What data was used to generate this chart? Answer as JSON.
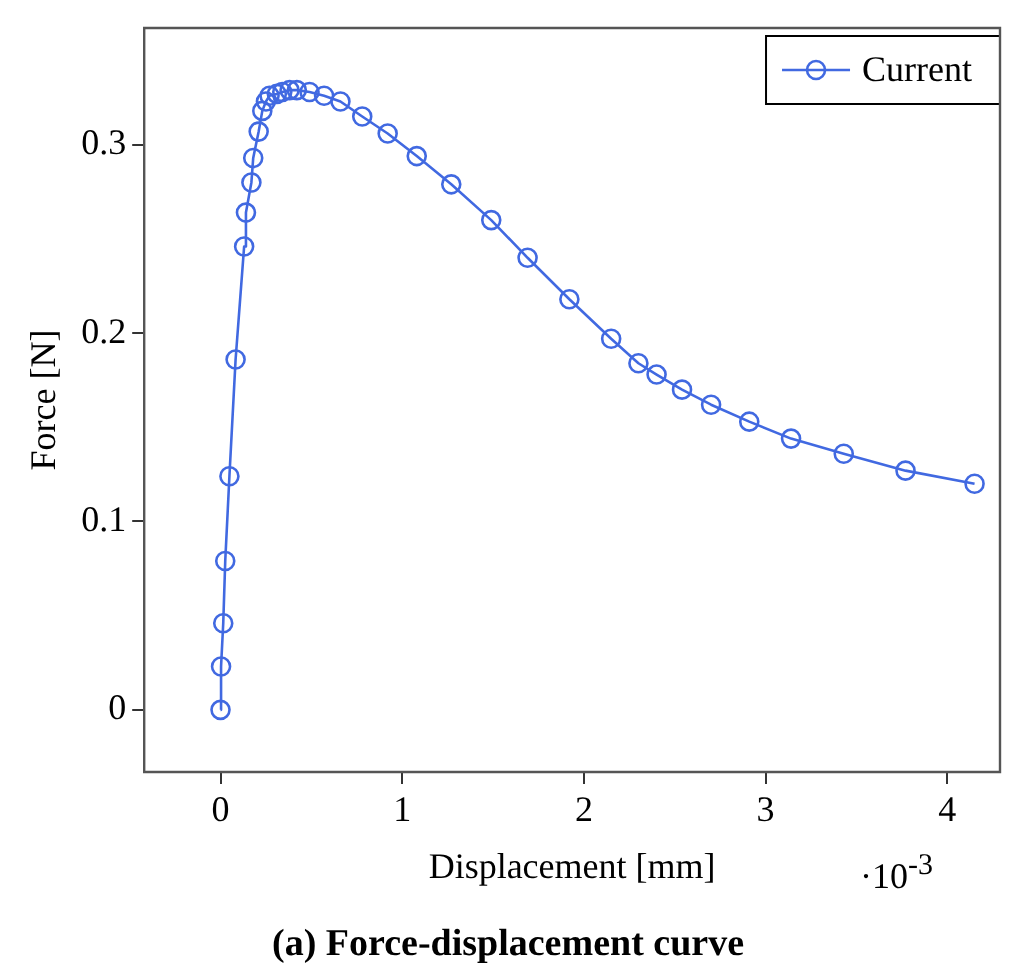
{
  "chart_data": {
    "type": "line",
    "title": "(a) Force-displacement curve",
    "xlabel": "Displacement [mm]",
    "ylabel": "Force [N]",
    "annotations": [
      "·10$^{-3}$"
    ],
    "x": [
      0,
      0.003,
      0.015,
      0.026,
      0.049,
      0.083,
      0.13,
      0.14,
      0.17,
      0.18,
      0.21,
      0.23,
      0.25,
      0.27,
      0.31,
      0.34,
      0.38,
      0.42,
      0.49,
      0.57,
      0.66,
      0.78,
      0.92,
      1.08,
      1.27,
      1.49,
      1.69,
      1.92,
      2.15,
      2.3,
      2.4,
      2.54,
      2.7,
      2.91,
      3.14,
      3.43,
      3.77,
      4.15
    ],
    "series": [
      {
        "name": "Current",
        "color": "#4169e1",
        "values": [
          0,
          0.023,
          0.046,
          0.079,
          0.124,
          0.186,
          0.246,
          0.264,
          0.28,
          0.293,
          0.307,
          0.318,
          0.323,
          0.326,
          0.327,
          0.328,
          0.329,
          0.329,
          0.328,
          0.326,
          0.323,
          0.315,
          0.306,
          0.294,
          0.279,
          0.26,
          0.24,
          0.218,
          0.197,
          0.184,
          0.178,
          0.17,
          0.162,
          0.153,
          0.144,
          0.136,
          0.127,
          0.12
        ]
      }
    ],
    "xlim": [
      -0.42,
      4.29
    ],
    "ylim": [
      -0.033,
      0.362
    ],
    "xticks": [
      0,
      1,
      2,
      3,
      4
    ],
    "yticks": [
      0,
      0.1,
      0.2,
      0.3
    ],
    "grid": false,
    "legend": "top right",
    "marker": "circle",
    "line_style": "solid"
  }
}
